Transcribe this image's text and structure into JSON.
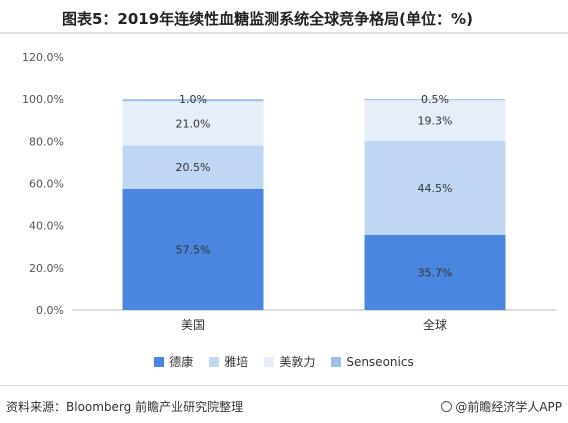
{
  "title": "图表5：2019年连续性血糖监测系统全球竞争格局(单位：%)",
  "source": "资料来源：Bloomberg 前瞻产业研究院整理",
  "brand": "@前瞻经济学人APP",
  "colors": {
    "dexcom": "#4a86e0",
    "abbott": "#c0d7f4",
    "medtronic": "#e6eefa",
    "senseonics": "#9dbdeb"
  },
  "chart_data": {
    "type": "bar",
    "stacked": true,
    "categories": [
      "美国",
      "全球"
    ],
    "series": [
      {
        "name": "德康",
        "values": [
          57.5,
          35.7
        ],
        "labels": [
          "57.5%",
          "35.7%"
        ]
      },
      {
        "name": "雅培",
        "values": [
          20.5,
          44.5
        ],
        "labels": [
          "20.5%",
          "44.5%"
        ]
      },
      {
        "name": "美敦力",
        "values": [
          21.0,
          19.3
        ],
        "labels": [
          "21.0%",
          "19.3%"
        ]
      },
      {
        "name": "Senseonics",
        "values": [
          1.0,
          0.5
        ],
        "labels": [
          "1.0%",
          "0.5%"
        ]
      }
    ],
    "ylim": [
      0,
      120
    ],
    "yticks": [
      "0.0%",
      "20.0%",
      "40.0%",
      "60.0%",
      "80.0%",
      "100.0%",
      "120.0%"
    ],
    "legend_position": "bottom",
    "grid": false
  }
}
